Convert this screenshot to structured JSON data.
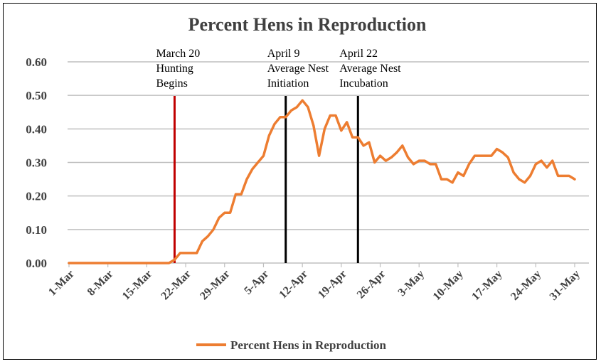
{
  "chart_data": {
    "type": "line",
    "title": "Percent Hens in Reproduction",
    "xlabel": "",
    "ylabel": "",
    "ylim": [
      0,
      0.6
    ],
    "yticks": [
      "0.00",
      "0.10",
      "0.20",
      "0.30",
      "0.40",
      "0.50",
      "0.60"
    ],
    "xlim": [
      "1-Mar",
      "31-May"
    ],
    "xticks": [
      "1-Mar",
      "8-Mar",
      "15-Mar",
      "22-Mar",
      "29-Mar",
      "5-Apr",
      "12-Apr",
      "19-Apr",
      "26-Apr",
      "3-May",
      "10-May",
      "17-May",
      "24-May",
      "31-May"
    ],
    "grid": "horizontal",
    "legend_position": "bottom",
    "colors": {
      "series": "#ED7D31",
      "hunting_line": "#C00000",
      "nest_lines": "#000000",
      "grid": "#BFBFBF"
    },
    "series": [
      {
        "name": "Percent Hens in Reproduction",
        "x": [
          "1-Mar",
          "2-Mar",
          "3-Mar",
          "4-Mar",
          "5-Mar",
          "6-Mar",
          "7-Mar",
          "8-Mar",
          "9-Mar",
          "10-Mar",
          "11-Mar",
          "12-Mar",
          "13-Mar",
          "14-Mar",
          "15-Mar",
          "16-Mar",
          "17-Mar",
          "18-Mar",
          "19-Mar",
          "20-Mar",
          "21-Mar",
          "22-Mar",
          "23-Mar",
          "24-Mar",
          "25-Mar",
          "26-Mar",
          "27-Mar",
          "28-Mar",
          "29-Mar",
          "30-Mar",
          "31-Mar",
          "1-Apr",
          "2-Apr",
          "3-Apr",
          "4-Apr",
          "5-Apr",
          "6-Apr",
          "7-Apr",
          "8-Apr",
          "9-Apr",
          "10-Apr",
          "11-Apr",
          "12-Apr",
          "13-Apr",
          "14-Apr",
          "15-Apr",
          "16-Apr",
          "17-Apr",
          "18-Apr",
          "19-Apr",
          "20-Apr",
          "21-Apr",
          "22-Apr",
          "23-Apr",
          "24-Apr",
          "25-Apr",
          "26-Apr",
          "27-Apr",
          "28-Apr",
          "29-Apr",
          "30-Apr",
          "1-May",
          "2-May",
          "3-May",
          "4-May",
          "5-May",
          "6-May",
          "7-May",
          "8-May",
          "9-May",
          "10-May",
          "11-May",
          "12-May",
          "13-May",
          "14-May",
          "15-May",
          "16-May",
          "17-May",
          "18-May",
          "19-May",
          "20-May",
          "21-May",
          "22-May",
          "23-May",
          "24-May",
          "25-May",
          "26-May",
          "27-May",
          "28-May",
          "29-May",
          "30-May",
          "31-May"
        ],
        "y": [
          0,
          0,
          0,
          0,
          0,
          0,
          0,
          0,
          0,
          0,
          0,
          0,
          0,
          0,
          0,
          0,
          0,
          0,
          0,
          0.01,
          0.03,
          0.03,
          0.03,
          0.03,
          0.065,
          0.08,
          0.1,
          0.135,
          0.15,
          0.15,
          0.205,
          0.205,
          0.25,
          0.28,
          0.3,
          0.32,
          0.38,
          0.415,
          0.435,
          0.435,
          0.455,
          0.465,
          0.485,
          0.465,
          0.41,
          0.32,
          0.4,
          0.44,
          0.44,
          0.395,
          0.42,
          0.375,
          0.375,
          0.35,
          0.36,
          0.3,
          0.32,
          0.305,
          0.315,
          0.33,
          0.35,
          0.315,
          0.295,
          0.305,
          0.305,
          0.295,
          0.295,
          0.25,
          0.25,
          0.24,
          0.27,
          0.26,
          0.295,
          0.32,
          0.32,
          0.32,
          0.32,
          0.34,
          0.33,
          0.315,
          0.27,
          0.25,
          0.24,
          0.26,
          0.295,
          0.305,
          0.285,
          0.305,
          0.26,
          0.26,
          0.26,
          0.25
        ]
      }
    ],
    "annotations": [
      {
        "x": "20-Mar",
        "lines": [
          "March 20",
          "Hunting",
          "Begins"
        ],
        "color": "#C00000"
      },
      {
        "x": "9-Apr",
        "lines": [
          "April 9",
          "Average Nest",
          "Initiation"
        ],
        "color": "#000000"
      },
      {
        "x": "22-Apr",
        "lines": [
          "April 22",
          "Average Nest",
          "Incubation"
        ],
        "color": "#000000"
      }
    ],
    "annotation_x_index": [
      19,
      39,
      52
    ]
  }
}
